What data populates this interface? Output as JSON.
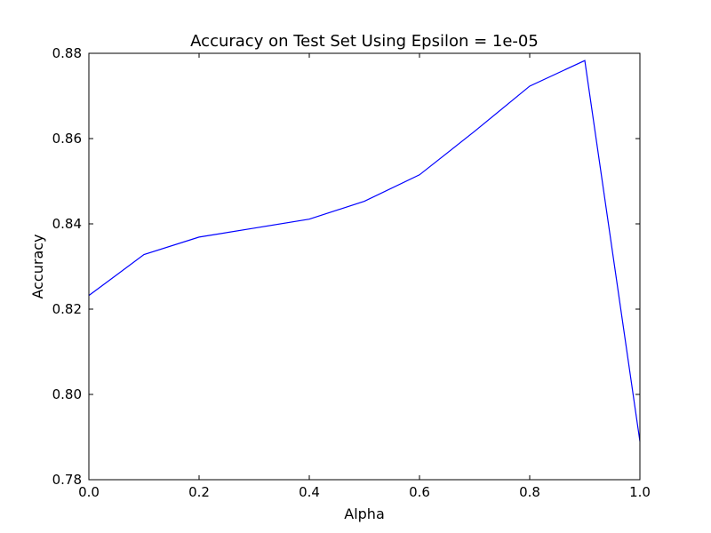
{
  "chart_data": {
    "type": "line",
    "title": "Accuracy on Test Set Using Epsilon = 1e-05",
    "xlabel": "Alpha",
    "ylabel": "Accuracy",
    "xlim": [
      0.0,
      1.0
    ],
    "ylim": [
      0.78,
      0.88
    ],
    "xticks": [
      0.0,
      0.2,
      0.4,
      0.6,
      0.8,
      1.0
    ],
    "xtick_labels": [
      "0.0",
      "0.2",
      "0.4",
      "0.6",
      "0.8",
      "1.0"
    ],
    "yticks": [
      0.78,
      0.8,
      0.82,
      0.84,
      0.86,
      0.88
    ],
    "ytick_labels": [
      "0.78",
      "0.80",
      "0.82",
      "0.84",
      "0.86",
      "0.88"
    ],
    "grid": false,
    "series": [
      {
        "color": "#0000ff",
        "x": [
          0.0,
          0.1,
          0.2,
          0.3,
          0.4,
          0.5,
          0.6,
          0.7,
          0.8,
          0.9,
          1.0
        ],
        "y": [
          0.8232,
          0.8328,
          0.8369,
          0.839,
          0.8411,
          0.8453,
          0.8515,
          0.8617,
          0.8723,
          0.8783,
          0.789
        ]
      }
    ]
  }
}
